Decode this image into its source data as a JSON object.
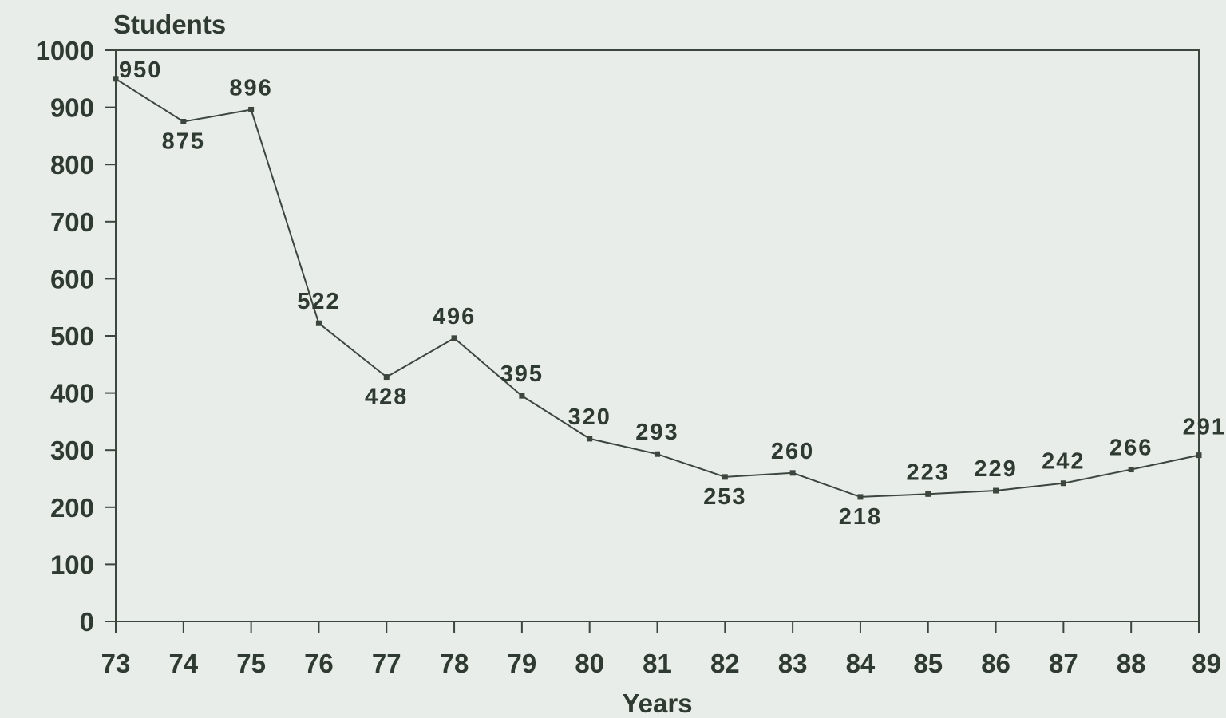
{
  "chart_data": {
    "type": "line",
    "title": "",
    "xlabel": "Years",
    "ylabel": "Students",
    "categories": [
      "73",
      "74",
      "75",
      "76",
      "77",
      "78",
      "79",
      "80",
      "81",
      "82",
      "83",
      "84",
      "85",
      "86",
      "87",
      "88",
      "89"
    ],
    "series": [
      {
        "values": [
          950,
          875,
          896,
          522,
          428,
          496,
          395,
          320,
          293,
          253,
          260,
          218,
          223,
          229,
          242,
          266,
          291
        ]
      }
    ],
    "data_labels": [
      "950",
      "875",
      "896",
      "522",
      "428",
      "496",
      "395",
      "320",
      "293",
      "253",
      "260",
      "218",
      "223",
      "229",
      "242",
      "266",
      "291"
    ],
    "ylim": [
      0,
      1000
    ],
    "yticks": [
      "0",
      "100",
      "200",
      "300",
      "400",
      "500",
      "600",
      "700",
      "800",
      "900",
      "1000"
    ],
    "grid": false,
    "legend": "none",
    "colors": {
      "line": "#3c463f",
      "axis": "#3c463f",
      "text": "#2f3a33",
      "background": "#e9ede9"
    }
  }
}
